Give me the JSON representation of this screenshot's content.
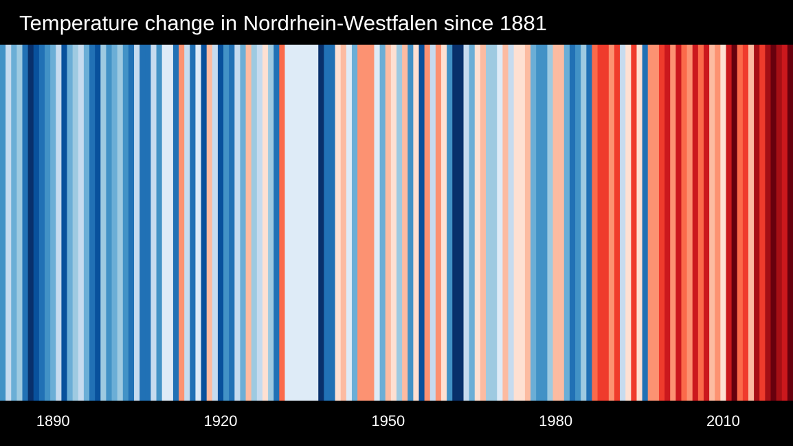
{
  "chart_data": {
    "type": "warming-stripes",
    "title": "Temperature change in Nordrhein-Westfalen since 1881",
    "years": [
      1881,
      1882,
      1883,
      1884,
      1885,
      1886,
      1887,
      1888,
      1889,
      1890,
      1891,
      1892,
      1893,
      1894,
      1895,
      1896,
      1897,
      1898,
      1899,
      1900,
      1901,
      1902,
      1903,
      1904,
      1905,
      1906,
      1907,
      1908,
      1909,
      1910,
      1911,
      1912,
      1913,
      1914,
      1915,
      1916,
      1917,
      1918,
      1919,
      1920,
      1921,
      1922,
      1923,
      1924,
      1925,
      1926,
      1927,
      1928,
      1929,
      1930,
      1931,
      1932,
      1933,
      1934,
      1935,
      1936,
      1937,
      1938,
      1939,
      1940,
      1941,
      1942,
      1943,
      1944,
      1945,
      1946,
      1947,
      1948,
      1949,
      1950,
      1951,
      1952,
      1953,
      1954,
      1955,
      1956,
      1957,
      1958,
      1959,
      1960,
      1961,
      1962,
      1963,
      1964,
      1965,
      1966,
      1967,
      1968,
      1969,
      1970,
      1971,
      1972,
      1973,
      1974,
      1975,
      1976,
      1977,
      1978,
      1979,
      1980,
      1981,
      1982,
      1983,
      1984,
      1985,
      1986,
      1987,
      1988,
      1989,
      1990,
      1991,
      1992,
      1993,
      1994,
      1995,
      1996,
      1997,
      1998,
      1999,
      2000,
      2001,
      2002,
      2003,
      2004,
      2005,
      2006,
      2007,
      2008,
      2009,
      2010,
      2011,
      2012,
      2013,
      2014,
      2015,
      2016,
      2017,
      2018,
      2019,
      2020,
      2021,
      2022
    ],
    "stripe_colors": [
      "#4292c6",
      "#c6dbef",
      "#6baed6",
      "#9ecae1",
      "#2171b5",
      "#08306b",
      "#08519c",
      "#2171b5",
      "#4292c6",
      "#6baed6",
      "#c6dbef",
      "#08519c",
      "#6baed6",
      "#9ecae1",
      "#c6dbef",
      "#6baed6",
      "#2171b5",
      "#08519c",
      "#9ecae1",
      "#4292c6",
      "#6baed6",
      "#9ecae1",
      "#4292c6",
      "#2171b5",
      "#c6dbef",
      "#2171b5",
      "#2171b5",
      "#c6dbef",
      "#4292c6",
      "#deebf7",
      "#deebf7",
      "#2171b5",
      "#fc9272",
      "#c6dbef",
      "#2171b5",
      "#deebf7",
      "#08519c",
      "#fcbba1",
      "#c6dbef",
      "#08519c",
      "#4292c6",
      "#2171b5",
      "#c6dbef",
      "#6baed6",
      "#fcbba1",
      "#9ecae1",
      "#c6dbef",
      "#fee0d2",
      "#9ecae1",
      "#2171b5",
      "#fb6a4a",
      "#deebf7",
      "#deebf7",
      "#deebf7",
      "#deebf7",
      "#deebf7",
      "#deebf7",
      "#08306b",
      "#2171b5",
      "#2171b5",
      "#fee0d2",
      "#fcbba1",
      "#deebf7",
      "#6baed6",
      "#fc9272",
      "#fc9272",
      "#fc9272",
      "#deebf7",
      "#6baed6",
      "#fcbba1",
      "#fee0d2",
      "#9ecae1",
      "#fcbba1",
      "#4292c6",
      "#fee0d2",
      "#08519c",
      "#fc9272",
      "#c6dbef",
      "#fc9272",
      "#fee0d2",
      "#4292c6",
      "#08306b",
      "#08306b",
      "#c6dbef",
      "#6baed6",
      "#fee0d2",
      "#fcbba1",
      "#9ecae1",
      "#9ecae1",
      "#deebf7",
      "#fcbba1",
      "#c6dbef",
      "#fee0d2",
      "#fee0d2",
      "#fcbba1",
      "#6baed6",
      "#4292c6",
      "#4292c6",
      "#9ecae1",
      "#fcbba1",
      "#fcbba1",
      "#6baed6",
      "#2171b5",
      "#4292c6",
      "#9ecae1",
      "#2171b5",
      "#fb6a4a",
      "#ef3b2c",
      "#ef3b2c",
      "#fc9272",
      "#ef3b2c",
      "#c6dbef",
      "#fee0d2",
      "#ef3b2c",
      "#fee0d2",
      "#2171b5",
      "#fc9272",
      "#fc9272",
      "#ef3b2c",
      "#cb181d",
      "#fc9272",
      "#cb181d",
      "#fb6a4a",
      "#fc9272",
      "#cb181d",
      "#fb6a4a",
      "#cb181d",
      "#fcbba1",
      "#fc9272",
      "#fee0d2",
      "#cb181d",
      "#67000d",
      "#fb6a4a",
      "#ef3b2c",
      "#fcbba1",
      "#a50f15",
      "#ef3b2c",
      "#a50f15",
      "#67000d",
      "#a50f15",
      "#cb181d",
      "#67000d"
    ],
    "tick_labels": [
      "1890",
      "1920",
      "1950",
      "1980",
      "2010"
    ],
    "tick_years": [
      1890,
      1920,
      1950,
      1980,
      2010
    ]
  }
}
